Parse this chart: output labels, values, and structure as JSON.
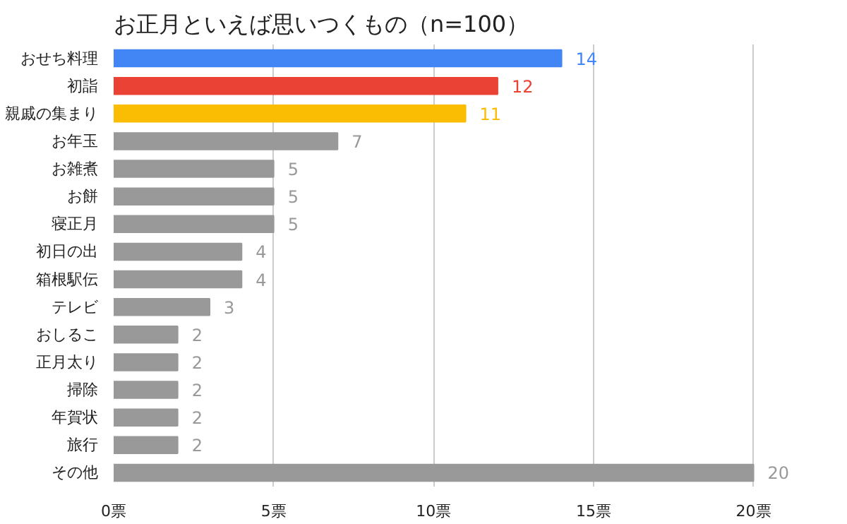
{
  "chart_data": {
    "type": "bar",
    "orientation": "horizontal",
    "title": "お正月といえば思いつくもの（n=100）",
    "categories": [
      "おせち料理",
      "初詣",
      "親戚の集まり",
      "お年玉",
      "お雑煮",
      "お餅",
      "寝正月",
      "初日の出",
      "箱根駅伝",
      "テレビ",
      "おしるこ",
      "正月太り",
      "掃除",
      "年賀状",
      "旅行",
      "その他"
    ],
    "values": [
      14,
      12,
      11,
      7,
      5,
      5,
      5,
      4,
      4,
      3,
      2,
      2,
      2,
      2,
      2,
      20
    ],
    "colors": [
      "#4285f4",
      "#ea4335",
      "#fbbc04",
      "#999999",
      "#999999",
      "#999999",
      "#999999",
      "#999999",
      "#999999",
      "#999999",
      "#999999",
      "#999999",
      "#999999",
      "#999999",
      "#999999",
      "#999999"
    ],
    "xlim": [
      0,
      20
    ],
    "xticks": [
      {
        "value": 0,
        "label": "0票"
      },
      {
        "value": 5,
        "label": "5票"
      },
      {
        "value": 10,
        "label": "10票"
      },
      {
        "value": 15,
        "label": "15票"
      },
      {
        "value": 20,
        "label": "20票"
      }
    ],
    "grid": "x",
    "data_labels": true
  }
}
